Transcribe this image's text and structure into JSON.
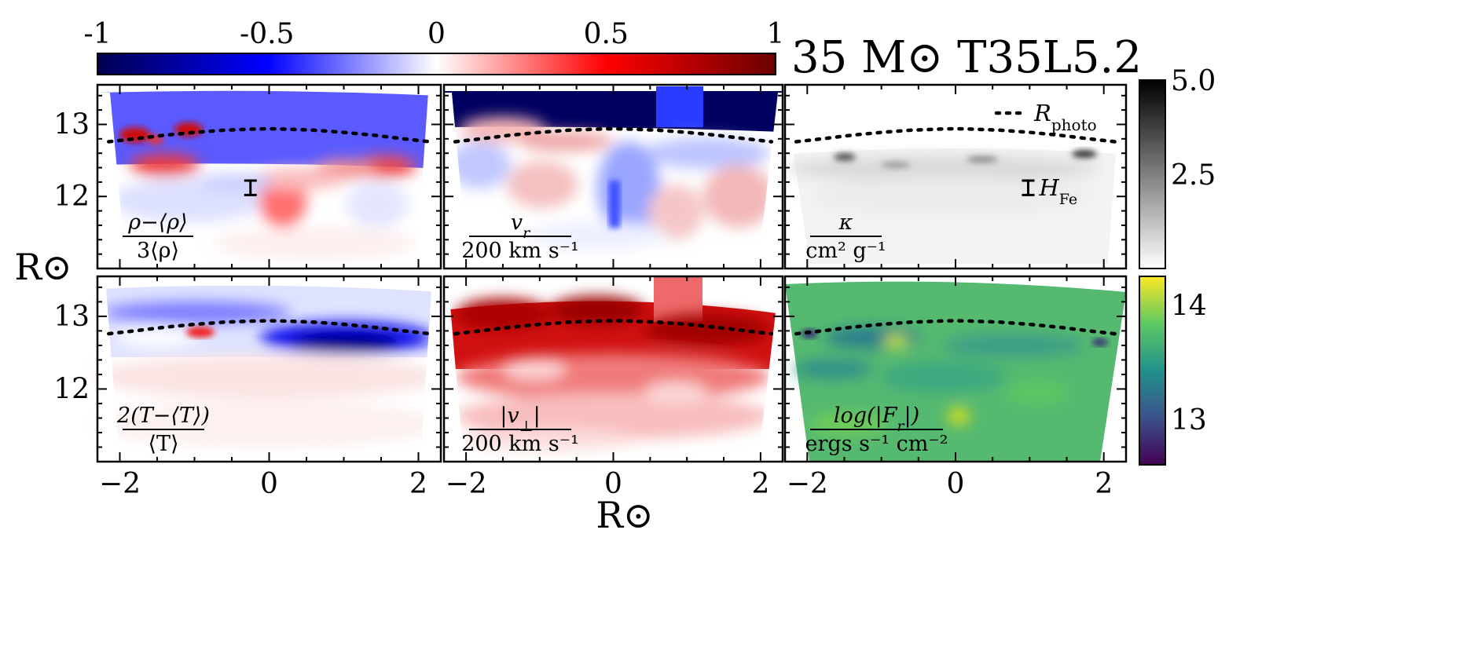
{
  "chart_data": {
    "type": "heatmap",
    "title": "35 M⊙ T35L5.2",
    "xlabel": "R⊙",
    "ylabel": "R⊙",
    "xlim": [
      -2.3,
      2.3
    ],
    "ylim": [
      11.0,
      13.55
    ],
    "x_ticks": [
      -2,
      0,
      2
    ],
    "y_ticks": [
      12,
      13
    ],
    "photosphere": {
      "legend_label": "R",
      "legend_subscript": "photo",
      "x": [
        -2.15,
        -1.8,
        -1.4,
        -1.0,
        -0.6,
        -0.2,
        0.0,
        0.2,
        0.6,
        1.0,
        1.4,
        1.8,
        2.15
      ],
      "y": [
        12.76,
        12.8,
        12.85,
        12.89,
        12.92,
        12.935,
        12.94,
        12.935,
        12.92,
        12.89,
        12.85,
        12.8,
        12.76
      ]
    },
    "scale_height": {
      "label": "H",
      "subscript": "Fe",
      "panel_a_x": -0.25,
      "panel_c_x": 0.98,
      "y_range": [
        12.02,
        12.22
      ]
    },
    "colorbars": [
      {
        "name": "diverging",
        "range": [
          -1,
          1
        ],
        "ticks": [
          "-1",
          "-0.5",
          "0",
          "0.5",
          "1"
        ],
        "colors": [
          "#000050",
          "#0000ff",
          "#ffffff",
          "#ff0000",
          "#6b0000"
        ]
      },
      {
        "name": "grey",
        "range": [
          0,
          5.0
        ],
        "ticks": [
          "5.0",
          "2.5"
        ],
        "colors": [
          "#ffffff",
          "#000000"
        ]
      },
      {
        "name": "viridis",
        "range": [
          12.6,
          14.25
        ],
        "ticks": [
          "14",
          "13"
        ],
        "colors": [
          "#440154",
          "#3b528b",
          "#21918c",
          "#5ec962",
          "#fde725"
        ]
      }
    ],
    "panels": [
      {
        "id": "a",
        "quantity": "density contrast",
        "label_num": "ρ−⟨ρ⟩",
        "label_den": "3⟨ρ⟩"
      },
      {
        "id": "b",
        "quantity": "radial velocity",
        "label_num": "v",
        "label_num_sub": "r",
        "label_den": "200 km s⁻¹"
      },
      {
        "id": "c",
        "quantity": "opacity",
        "label_num": "κ",
        "label_den": "cm² g⁻¹"
      },
      {
        "id": "d",
        "quantity": "temperature contrast",
        "label_num": "2(T−⟨T⟩)",
        "label_den": "⟨T⟩"
      },
      {
        "id": "e",
        "quantity": "tangential velocity",
        "label_num": "|v",
        "label_num_sub": "⊥",
        "label_num_end": "|",
        "label_den": "200 km s⁻¹"
      },
      {
        "id": "f",
        "quantity": "radiative flux",
        "label_num": "log(|F",
        "label_num_sub": "r",
        "label_num_end": "|)",
        "label_den": "ergs s⁻¹ cm⁻²"
      }
    ]
  }
}
